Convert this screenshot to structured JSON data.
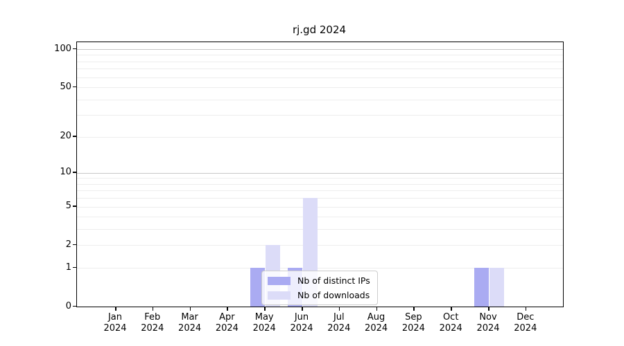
{
  "chart_data": {
    "type": "bar",
    "title": "rj.gd 2024",
    "categories": [
      {
        "label": "Jan",
        "sublabel": "2024"
      },
      {
        "label": "Feb",
        "sublabel": "2024"
      },
      {
        "label": "Mar",
        "sublabel": "2024"
      },
      {
        "label": "Apr",
        "sublabel": "2024"
      },
      {
        "label": "May",
        "sublabel": "2024"
      },
      {
        "label": "Jun",
        "sublabel": "2024"
      },
      {
        "label": "Jul",
        "sublabel": "2024"
      },
      {
        "label": "Aug",
        "sublabel": "2024"
      },
      {
        "label": "Sep",
        "sublabel": "2024"
      },
      {
        "label": "Oct",
        "sublabel": "2024"
      },
      {
        "label": "Nov",
        "sublabel": "2024"
      },
      {
        "label": "Dec",
        "sublabel": "2024"
      }
    ],
    "series": [
      {
        "name": "Nb of distinct IPs",
        "color": "#aaabf2",
        "values": [
          0,
          0,
          0,
          0,
          1,
          1,
          0,
          0,
          0,
          0,
          1,
          0
        ]
      },
      {
        "name": "Nb of downloads",
        "color": "#dcdcf8",
        "values": [
          0,
          0,
          0,
          0,
          2,
          6,
          0,
          0,
          0,
          0,
          1,
          0
        ]
      }
    ],
    "y_axis": {
      "scale": "log1p",
      "tick_values": [
        0,
        1,
        2,
        5,
        10,
        20,
        50,
        100
      ],
      "gridline_values": [
        1,
        2,
        3,
        4,
        5,
        6,
        7,
        8,
        9,
        10,
        20,
        30,
        40,
        50,
        60,
        70,
        80,
        90,
        100
      ],
      "major_gridline_values": [
        10,
        100
      ],
      "range_max": 100
    },
    "legend_position": "lower center",
    "colors": {
      "grid_minor": "#ededed",
      "grid_major": "#c8c8c8",
      "axis": "#000000",
      "legend_border": "#cccccc"
    }
  }
}
